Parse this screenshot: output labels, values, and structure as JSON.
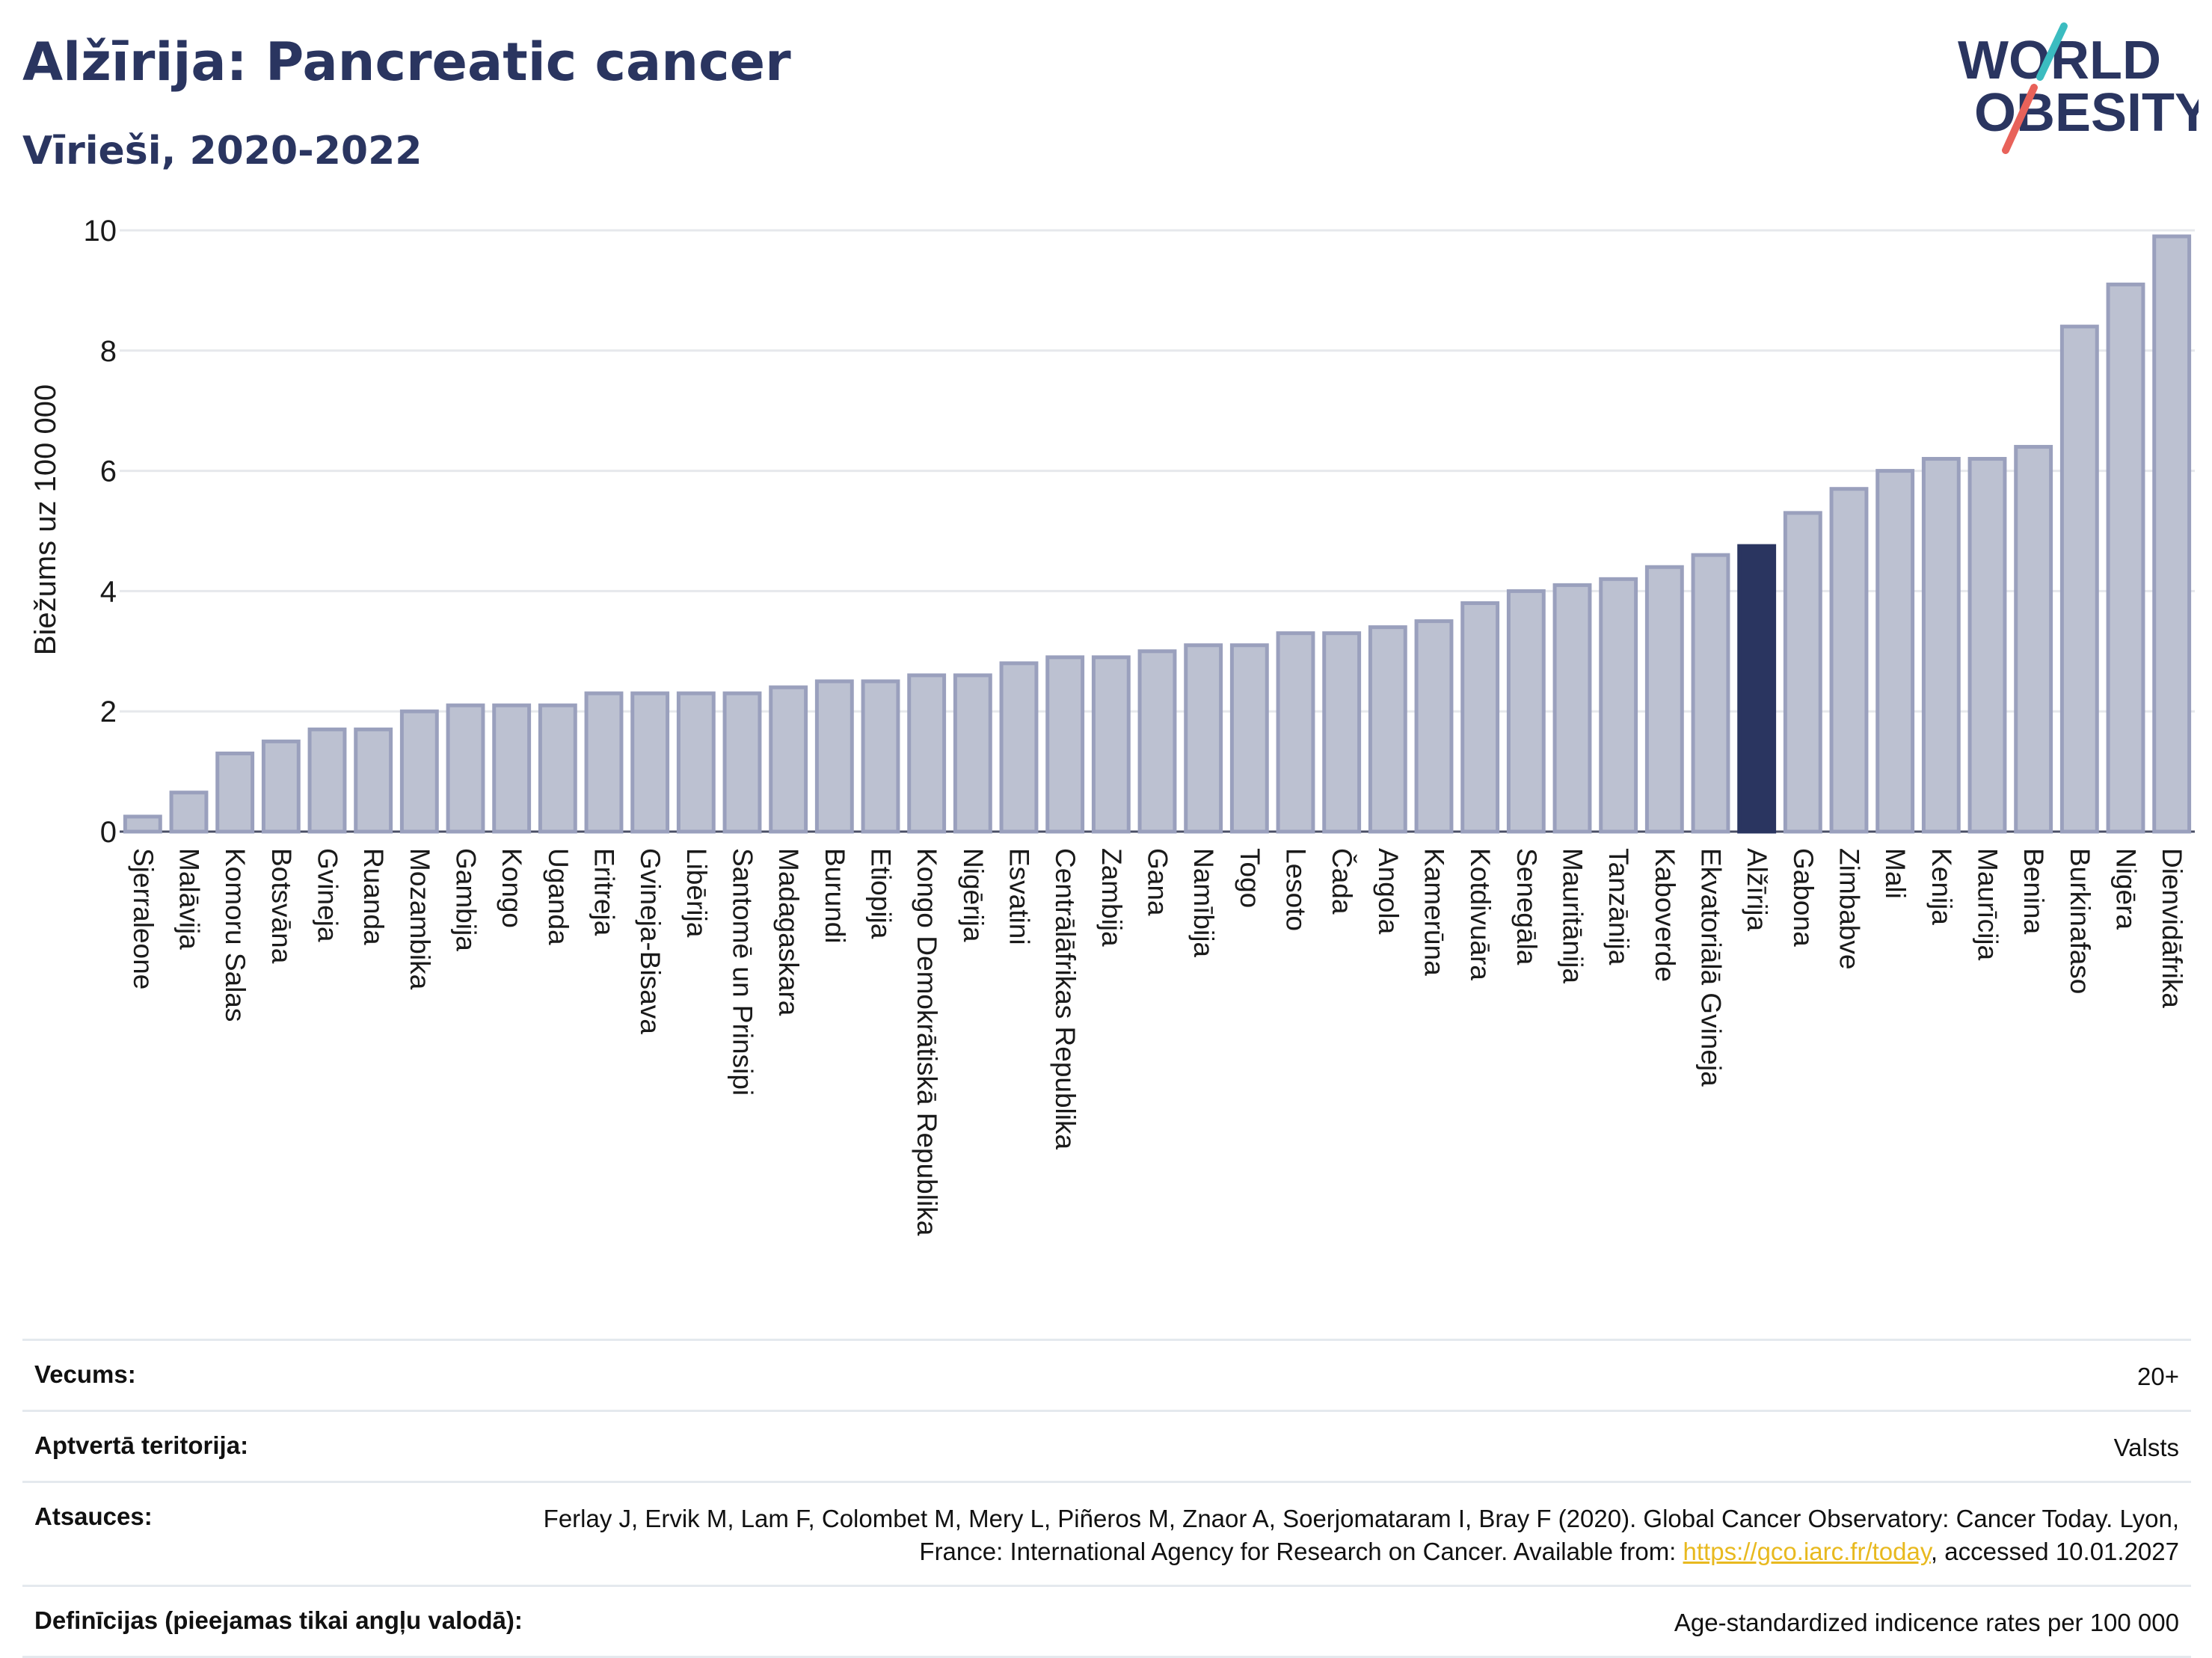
{
  "header": {
    "title": "Alžīrija: Pancreatic cancer",
    "subtitle": "Vīrieši, 2020-2022",
    "logo_line1": "WORLD",
    "logo_line2": "OBESITY"
  },
  "colors": {
    "bar": "#bcc1d1",
    "bar_border": "#9aa0bd",
    "highlight": "#2a3560",
    "grid": "#e6e8ec",
    "axis_text": "#1a1a1a",
    "logo_teal": "#3bbcc0",
    "logo_red": "#e8625a"
  },
  "chart_data": {
    "type": "bar",
    "ylabel": "Biežums uz 100 000",
    "ylim": [
      0,
      10
    ],
    "yticks": [
      0,
      2,
      4,
      6,
      8,
      10
    ],
    "grid": true,
    "highlight": "Alžīrija",
    "categories": [
      "Sjerraleone",
      "Malāvija",
      "Komoru Salas",
      "Botsvāna",
      "Gvineja",
      "Ruanda",
      "Mozambika",
      "Gambija",
      "Kongo",
      "Uganda",
      "Eritreja",
      "Gvineja-Bisava",
      "Libērija",
      "Santomē un Prinsipi",
      "Madagaskara",
      "Burundi",
      "Etiopija",
      "Kongo Demokrātiskā Republika",
      "Nigērija",
      "Esvatini",
      "Centrālāfrikas Republika",
      "Zambija",
      "Gana",
      "Namībija",
      "Togo",
      "Lesoto",
      "Čada",
      "Angola",
      "Kamerūna",
      "Kotdivuāra",
      "Senegāla",
      "Mauritānija",
      "Tanzānija",
      "Kaboverde",
      "Ekvatoriālā Gvineja",
      "Alžīrija",
      "Gabona",
      "Zimbabve",
      "Mali",
      "Kenija",
      "Maurīcija",
      "Benina",
      "Burkinafaso",
      "Nigēra",
      "Dienvidāfrika"
    ],
    "values": [
      0.25,
      0.65,
      1.3,
      1.5,
      1.7,
      1.7,
      2.0,
      2.1,
      2.1,
      2.1,
      2.3,
      2.3,
      2.3,
      2.3,
      2.4,
      2.5,
      2.5,
      2.6,
      2.6,
      2.8,
      2.9,
      2.9,
      3.0,
      3.1,
      3.1,
      3.3,
      3.3,
      3.4,
      3.5,
      3.8,
      4.0,
      4.1,
      4.2,
      4.4,
      4.6,
      4.75,
      5.3,
      5.7,
      6.0,
      6.2,
      6.2,
      6.4,
      8.4,
      9.1,
      9.9
    ]
  },
  "footer": {
    "age_label": "Vecums:",
    "age_value": "20+",
    "coverage_label": "Aptvertā teritorija:",
    "coverage_value": "Valsts",
    "refs_label": "Atsauces:",
    "refs_text1": "Ferlay J, Ervik M, Lam F, Colombet M, Mery L, Piñeros M, Znaor A, Soerjomataram I, Bray F (2020). Global Cancer Observatory: Cancer Today. Lyon, France: International Agency for Research on Cancer. Available from: ",
    "refs_link": "https://gco.iarc.fr/today",
    "refs_text2": ", accessed 10.01.2027",
    "defs_label": "Definīcijas (pieejamas tikai angļu valodā):",
    "defs_value": "Age-standardized indicence rates per 100 000"
  }
}
